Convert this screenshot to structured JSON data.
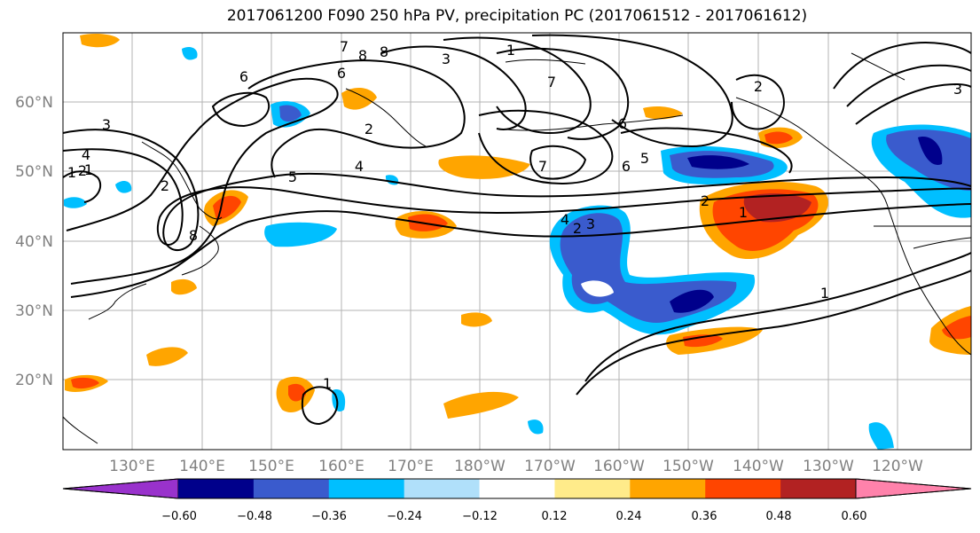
{
  "title": "2017061200 F090 250 hPa PV, precipitation PC (2017061512 - 2017061612)",
  "lat_labels": [
    "60°N",
    "50°N",
    "40°N",
    "30°N",
    "20°N"
  ],
  "lon_labels": [
    "130°E",
    "140°E",
    "150°E",
    "160°E",
    "170°E",
    "180°W",
    "170°W",
    "160°W",
    "150°W",
    "140°W",
    "130°W",
    "120°W"
  ],
  "colorbar": {
    "ticks": [
      "−0.60",
      "−0.48",
      "−0.36",
      "−0.24",
      "−0.12",
      "0.12",
      "0.24",
      "0.36",
      "0.48",
      "0.60"
    ],
    "colors": [
      "#9932cc",
      "#00008b",
      "#3a5bcd",
      "#00bfff",
      "#b0e0fa",
      "#ffffff",
      "#ffeb8a",
      "#ffa500",
      "#ff4500",
      "#b22222",
      "#ff82ab"
    ]
  },
  "contour_labels": [
    "8",
    "3",
    "1",
    "7",
    "8",
    "6",
    "6",
    "7",
    "2",
    "2",
    "2",
    "1",
    "5",
    "4",
    "7",
    "6",
    "6",
    "5",
    "4",
    "3",
    "2",
    "1",
    "4",
    "3",
    "2",
    "1",
    "8",
    "1",
    "2",
    "1",
    "3"
  ]
}
